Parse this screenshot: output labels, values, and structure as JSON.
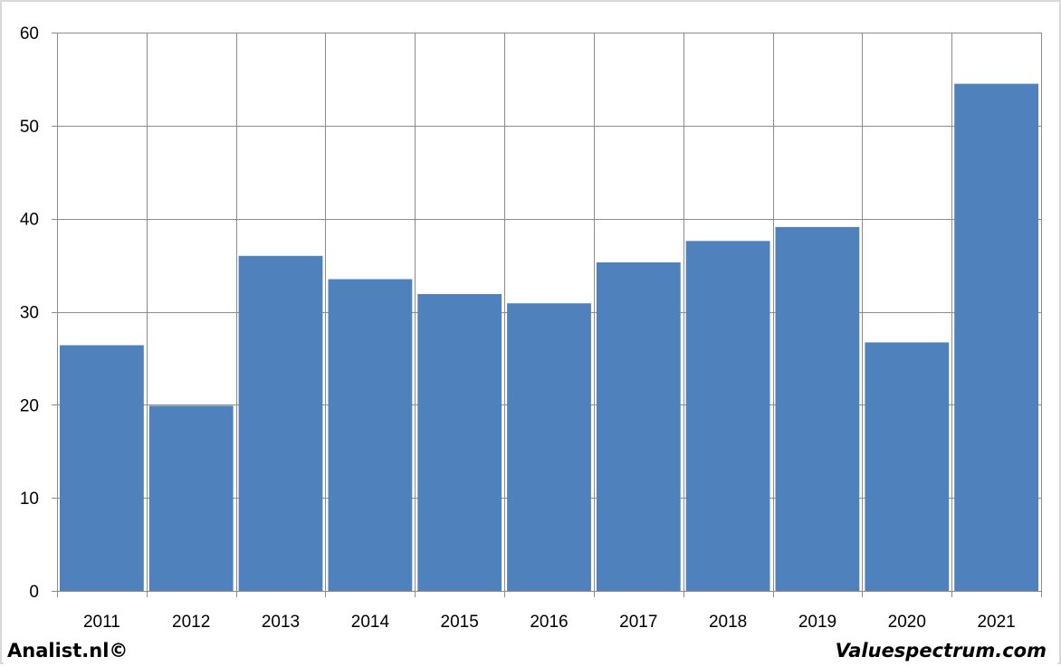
{
  "chart_data": {
    "type": "bar",
    "categories": [
      "2011",
      "2012",
      "2013",
      "2014",
      "2015",
      "2016",
      "2017",
      "2018",
      "2019",
      "2020",
      "2021"
    ],
    "series": [
      {
        "values": [
          26.4,
          19.9,
          36.0,
          33.5,
          31.9,
          30.9,
          35.3,
          37.6,
          39.1,
          26.7,
          54.5
        ],
        "color": "#4f81bd"
      }
    ],
    "ylim": [
      0,
      60
    ],
    "yticks": [
      "0",
      "10",
      "20",
      "30",
      "40",
      "50",
      "60"
    ],
    "title": "",
    "xlabel": "",
    "ylabel": "",
    "grid": true,
    "legend": "none"
  },
  "footer": {
    "left_text": "Analist.nl©",
    "right_text": "Valuespectrum.com"
  }
}
